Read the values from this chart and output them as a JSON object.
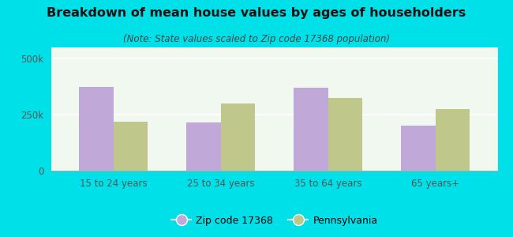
{
  "title": "Breakdown of mean house values by ages of householders",
  "subtitle": "(Note: State values scaled to Zip code 17368 population)",
  "categories": [
    "15 to 24 years",
    "25 to 34 years",
    "35 to 64 years",
    "65 years+"
  ],
  "zip_values": [
    375000,
    215000,
    370000,
    200000
  ],
  "pa_values": [
    220000,
    300000,
    325000,
    275000
  ],
  "zip_color": "#c0a8d8",
  "pa_color": "#bfc88a",
  "background_outer": "#00e0e8",
  "background_plot": "#f0f8f0",
  "ylim": [
    0,
    550000
  ],
  "yticks": [
    0,
    250000,
    500000
  ],
  "zip_label": "Zip code 17368",
  "pa_label": "Pennsylvania",
  "title_fontsize": 11.5,
  "subtitle_fontsize": 8.5,
  "bar_width": 0.32,
  "grid_color": "#ffffff",
  "axis_line_color": "#aaaaaa",
  "tick_color": "#555555"
}
